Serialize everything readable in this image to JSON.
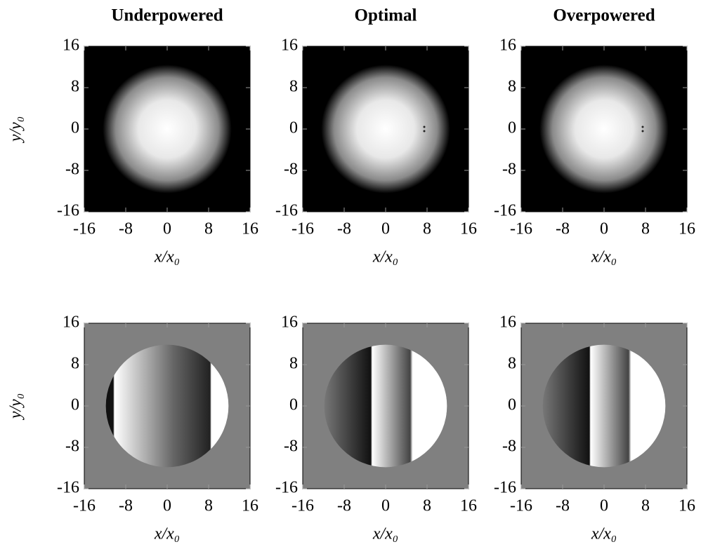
{
  "chart_data": [
    {
      "type": "image",
      "title": "Underpowered",
      "xlabel": "x/x₀",
      "ylabel": "y/y₀",
      "xlim": [
        -16,
        16
      ],
      "ylim": [
        -16,
        16
      ],
      "xticks": [
        -16,
        -8,
        0,
        8,
        16
      ],
      "yticks": [
        -16,
        -8,
        0,
        8,
        16
      ]
    },
    {
      "type": "image",
      "title": "Optimal",
      "xlabel": "x/x₀",
      "xlim": [
        -16,
        16
      ],
      "ylim": [
        -16,
        16
      ],
      "xticks": [
        -16,
        -8,
        0,
        8,
        16
      ],
      "yticks": [
        -16,
        -8,
        0,
        8,
        16
      ]
    },
    {
      "type": "image",
      "title": "Overpowered",
      "xlabel": "x/x₀",
      "xlim": [
        -16,
        16
      ],
      "ylim": [
        -16,
        16
      ],
      "xticks": [
        -16,
        -8,
        0,
        8,
        16
      ],
      "yticks": [
        -16,
        -8,
        0,
        8,
        16
      ]
    },
    {
      "type": "image",
      "xlabel": "x/x₀",
      "ylabel": "y/y₀",
      "xlim": [
        -16,
        16
      ],
      "ylim": [
        -16,
        16
      ],
      "xticks": [
        -16,
        -8,
        0,
        8,
        16
      ],
      "yticks": [
        -16,
        -8,
        0,
        8,
        16
      ]
    },
    {
      "type": "image",
      "xlabel": "x/x₀",
      "xlim": [
        -16,
        16
      ],
      "ylim": [
        -16,
        16
      ],
      "xticks": [
        -16,
        -8,
        0,
        8,
        16
      ],
      "yticks": [
        -16,
        -8,
        0,
        8,
        16
      ]
    },
    {
      "type": "image",
      "xlabel": "x/x₀",
      "xlim": [
        -16,
        16
      ],
      "ylim": [
        -16,
        16
      ],
      "xticks": [
        -16,
        -8,
        0,
        8,
        16
      ],
      "yticks": [
        -16,
        -8,
        0,
        8,
        16
      ]
    }
  ]
}
